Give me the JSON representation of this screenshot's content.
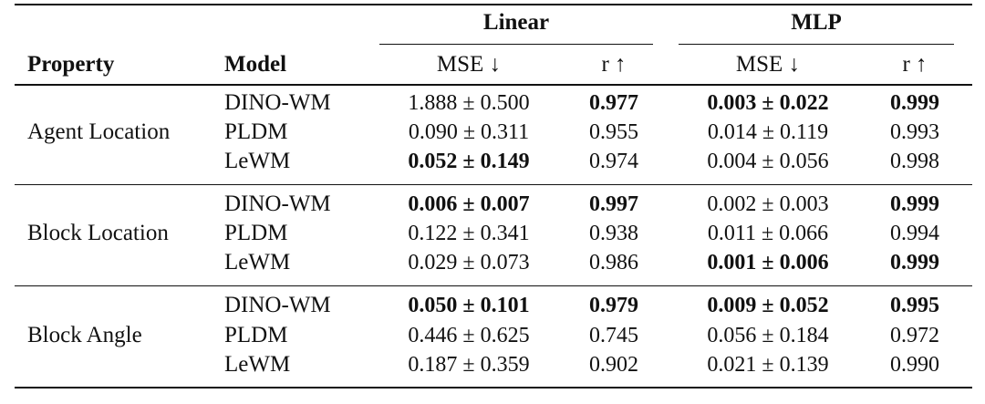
{
  "table": {
    "group_headers": [
      "Linear",
      "MLP"
    ],
    "column_headers": {
      "property": "Property",
      "model": "Model",
      "linear_mse": "MSE ↓",
      "linear_r": "r ↑",
      "mlp_mse": "MSE ↓",
      "mlp_r": "r ↑"
    },
    "groups": [
      {
        "property": "Agent Location",
        "rows": [
          {
            "model": "DINO-WM",
            "lin_mse": "1.888 ± 0.500",
            "lin_r": "0.977",
            "mlp_mse": "0.003 ± 0.022",
            "mlp_r": "0.999"
          },
          {
            "model": "PLDM",
            "lin_mse": "0.090 ± 0.311",
            "lin_r": "0.955",
            "mlp_mse": "0.014 ± 0.119",
            "mlp_r": "0.993"
          },
          {
            "model": "LeWM",
            "lin_mse": "0.052 ± 0.149",
            "lin_r": "0.974",
            "mlp_mse": "0.004 ± 0.056",
            "mlp_r": "0.998"
          }
        ]
      },
      {
        "property": "Block Location",
        "rows": [
          {
            "model": "DINO-WM",
            "lin_mse": "0.006 ± 0.007",
            "lin_r": "0.997",
            "mlp_mse": "0.002 ± 0.003",
            "mlp_r": "0.999"
          },
          {
            "model": "PLDM",
            "lin_mse": "0.122 ± 0.341",
            "lin_r": "0.938",
            "mlp_mse": "0.011 ± 0.066",
            "mlp_r": "0.994"
          },
          {
            "model": "LeWM",
            "lin_mse": "0.029 ± 0.073",
            "lin_r": "0.986",
            "mlp_mse": "0.001 ± 0.006",
            "mlp_r": "0.999"
          }
        ]
      },
      {
        "property": "Block Angle",
        "rows": [
          {
            "model": "DINO-WM",
            "lin_mse": "0.050 ± 0.101",
            "lin_r": "0.979",
            "mlp_mse": "0.009 ± 0.052",
            "mlp_r": "0.995"
          },
          {
            "model": "PLDM",
            "lin_mse": "0.446 ± 0.625",
            "lin_r": "0.745",
            "mlp_mse": "0.056 ± 0.184",
            "mlp_r": "0.972"
          },
          {
            "model": "LeWM",
            "lin_mse": "0.187 ± 0.359",
            "lin_r": "0.902",
            "mlp_mse": "0.021 ± 0.139",
            "mlp_r": "0.990"
          }
        ]
      }
    ]
  }
}
